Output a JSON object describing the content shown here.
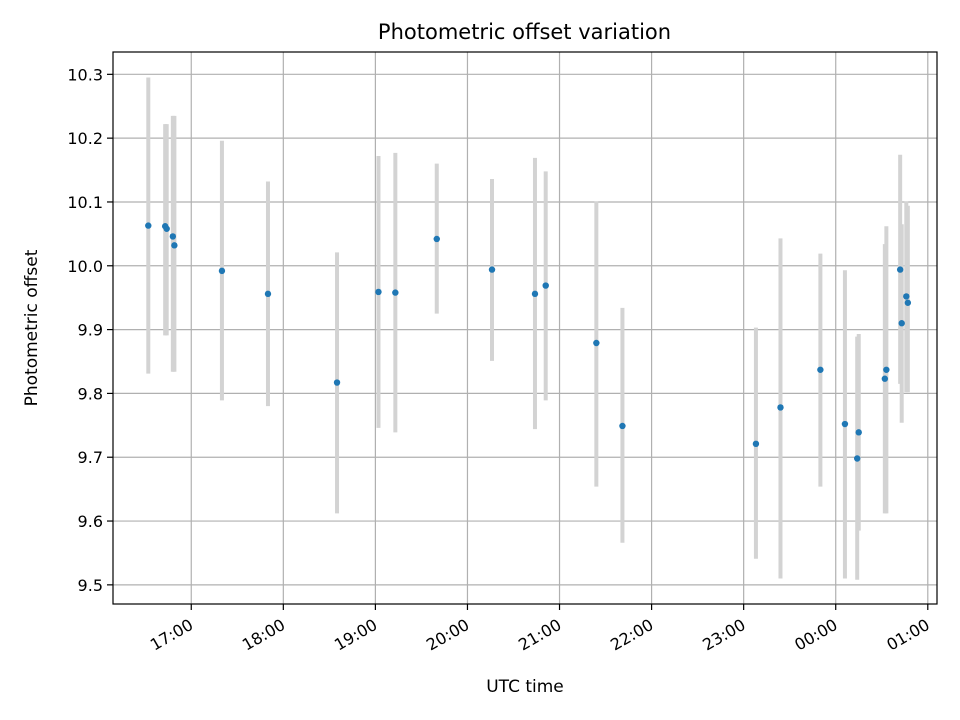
{
  "chart_data": {
    "type": "scatter",
    "title": "Photometric offset variation",
    "xlabel": "UTC time",
    "ylabel": "Photometric offset",
    "x_unit": "UTC time (hours)",
    "xlim": [
      "16:09",
      "01:06"
    ],
    "ylim": [
      9.47,
      10.335
    ],
    "x_ticks": [
      "17:00",
      "18:00",
      "19:00",
      "20:00",
      "21:00",
      "22:00",
      "23:00",
      "00:00",
      "01:00"
    ],
    "y_ticks": [
      "9.5",
      "9.6",
      "9.7",
      "9.8",
      "9.9",
      "10.0",
      "10.1",
      "10.2",
      "10.3"
    ],
    "grid": true,
    "legend": "none",
    "colors": {
      "point": "#1f77b4",
      "error_bar": "#d3d3d3",
      "grid": "#b0b0b0"
    },
    "series": [
      {
        "points": [
          {
            "x": "16:32",
            "y": 10.063,
            "ylo": 9.831,
            "yhi": 10.295
          },
          {
            "x": "16:43",
            "y": 10.062,
            "ylo": 9.891,
            "yhi": 10.222
          },
          {
            "x": "16:44",
            "y": 10.058,
            "ylo": 9.891,
            "yhi": 10.222
          },
          {
            "x": "16:48",
            "y": 10.046,
            "ylo": 9.834,
            "yhi": 10.235
          },
          {
            "x": "16:49",
            "y": 10.032,
            "ylo": 9.834,
            "yhi": 10.235
          },
          {
            "x": "17:20",
            "y": 9.992,
            "ylo": 9.789,
            "yhi": 10.196
          },
          {
            "x": "17:50",
            "y": 9.956,
            "ylo": 9.78,
            "yhi": 10.132
          },
          {
            "x": "18:35",
            "y": 9.817,
            "ylo": 9.612,
            "yhi": 10.021
          },
          {
            "x": "19:02",
            "y": 9.959,
            "ylo": 9.746,
            "yhi": 10.172
          },
          {
            "x": "19:13",
            "y": 9.958,
            "ylo": 9.739,
            "yhi": 10.177
          },
          {
            "x": "19:40",
            "y": 10.042,
            "ylo": 9.925,
            "yhi": 10.16
          },
          {
            "x": "20:16",
            "y": 9.994,
            "ylo": 9.851,
            "yhi": 10.136
          },
          {
            "x": "20:44",
            "y": 9.956,
            "ylo": 9.744,
            "yhi": 10.169
          },
          {
            "x": "20:51",
            "y": 9.969,
            "ylo": 9.789,
            "yhi": 10.148
          },
          {
            "x": "21:24",
            "y": 9.879,
            "ylo": 9.654,
            "yhi": 10.101
          },
          {
            "x": "21:41",
            "y": 9.749,
            "ylo": 9.566,
            "yhi": 9.934
          },
          {
            "x": "23:08",
            "y": 9.721,
            "ylo": 9.541,
            "yhi": 9.903
          },
          {
            "x": "23:24",
            "y": 9.778,
            "ylo": 9.51,
            "yhi": 10.043
          },
          {
            "x": "23:50",
            "y": 9.837,
            "ylo": 9.654,
            "yhi": 10.019
          },
          {
            "x": "00:06",
            "y": 9.752,
            "ylo": 9.51,
            "yhi": 9.993
          },
          {
            "x": "00:14",
            "y": 9.698,
            "ylo": 9.508,
            "yhi": 9.889
          },
          {
            "x": "00:15",
            "y": 9.739,
            "ylo": 9.585,
            "yhi": 9.893
          },
          {
            "x": "00:32",
            "y": 9.823,
            "ylo": 9.612,
            "yhi": 10.034
          },
          {
            "x": "00:33",
            "y": 9.837,
            "ylo": 9.612,
            "yhi": 10.062
          },
          {
            "x": "00:42",
            "y": 9.994,
            "ylo": 9.815,
            "yhi": 10.174
          },
          {
            "x": "00:43",
            "y": 9.91,
            "ylo": 9.754,
            "yhi": 10.065
          },
          {
            "x": "00:46",
            "y": 9.952,
            "ylo": 9.802,
            "yhi": 10.101
          },
          {
            "x": "00:47",
            "y": 9.942,
            "ylo": 9.802,
            "yhi": 10.094
          }
        ]
      }
    ]
  }
}
